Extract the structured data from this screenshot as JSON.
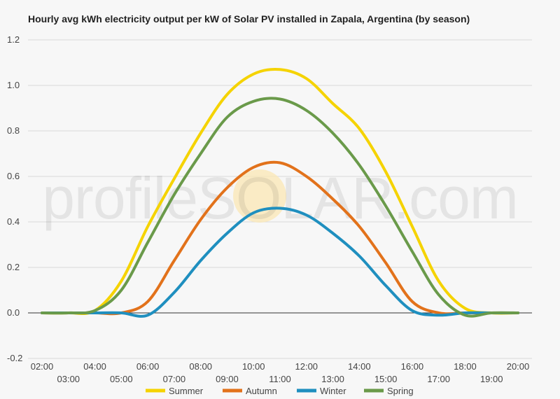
{
  "chart_data": {
    "type": "line",
    "title": "Hourly avg kWh electricity output per kW of Solar PV installed in Zapala, Argentina (by season)",
    "watermark": "profileSOLAR.com",
    "xlabel": "",
    "ylabel": "",
    "ylim": [
      -0.2,
      1.2
    ],
    "yticks": [
      "-0.2",
      "0.0",
      "0.2",
      "0.4",
      "0.6",
      "0.8",
      "1.0",
      "1.2"
    ],
    "ytick_values": [
      -0.2,
      0.0,
      0.2,
      0.4,
      0.6,
      0.8,
      1.0,
      1.2
    ],
    "x_upper_labels": [
      "02:00",
      "04:00",
      "06:00",
      "08:00",
      "10:00",
      "12:00",
      "14:00",
      "16:00",
      "18:00",
      "20:00"
    ],
    "x_lower_labels": [
      "03:00",
      "05:00",
      "07:00",
      "09:00",
      "11:00",
      "13:00",
      "15:00",
      "17:00",
      "19:00"
    ],
    "x": [
      2,
      3,
      4,
      5,
      6,
      7,
      8,
      9,
      10,
      11,
      12,
      13,
      14,
      15,
      16,
      17,
      18,
      19,
      20
    ],
    "series": [
      {
        "name": "Summer",
        "color": "#f5d300",
        "values": [
          0,
          0,
          0.01,
          0.14,
          0.38,
          0.59,
          0.79,
          0.96,
          1.05,
          1.07,
          1.03,
          0.92,
          0.81,
          0.62,
          0.38,
          0.14,
          0.02,
          0,
          0
        ]
      },
      {
        "name": "Autumn",
        "color": "#e2721b",
        "values": [
          0,
          0,
          0,
          0,
          0.05,
          0.23,
          0.41,
          0.55,
          0.64,
          0.66,
          0.6,
          0.5,
          0.38,
          0.22,
          0.05,
          0,
          0,
          0,
          0
        ]
      },
      {
        "name": "Winter",
        "color": "#1f8fbf",
        "values": [
          0,
          0,
          0,
          0,
          -0.01,
          0.09,
          0.23,
          0.35,
          0.44,
          0.46,
          0.43,
          0.35,
          0.25,
          0.12,
          0.01,
          -0.01,
          0,
          0,
          0
        ]
      },
      {
        "name": "Spring",
        "color": "#6a9a4a",
        "values": [
          0,
          0,
          0.01,
          0.1,
          0.31,
          0.52,
          0.7,
          0.86,
          0.93,
          0.94,
          0.89,
          0.79,
          0.65,
          0.47,
          0.27,
          0.08,
          -0.01,
          0,
          0
        ]
      }
    ],
    "grid": true,
    "legend_position": "bottom"
  }
}
